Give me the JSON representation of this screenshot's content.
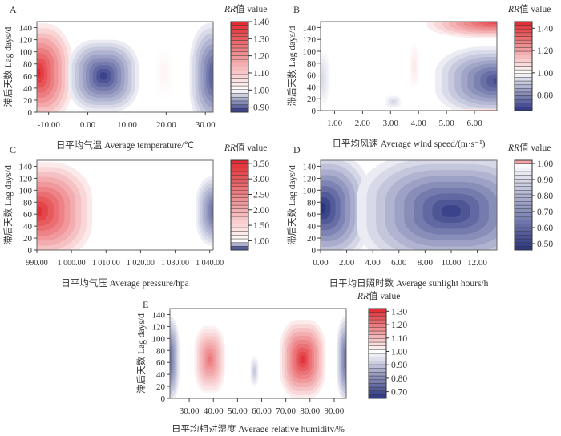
{
  "colors": {
    "high": "#e0282e",
    "low": "#2b3481",
    "neutral": "#ffffff"
  },
  "chart_data": [
    {
      "panel": "A",
      "type": "heatmap",
      "contour": true,
      "xlabel": "日平均气温 Average temperature/℃",
      "ylabel": "滞后天数 Lag days/d",
      "legend_title_italic": "RR",
      "legend_title": "值 value",
      "xlim": [
        -13,
        32
      ],
      "ylim": [
        0,
        150
      ],
      "xticks": [
        -10,
        0,
        10,
        20,
        30
      ],
      "xtick_labels": [
        "-10.00",
        "0.00",
        "10.00",
        "20.00",
        "30.00"
      ],
      "yticks": [
        0,
        20,
        40,
        60,
        80,
        100,
        120,
        140
      ],
      "legend_range": [
        0.87,
        1.4
      ],
      "legend_ticks": [
        0.9,
        1.0,
        1.1,
        1.2,
        1.3,
        1.4
      ],
      "legend_tick_labels": [
        "0.90",
        "1.00",
        "1.10",
        "1.20",
        "1.30",
        "1.40"
      ],
      "extremes": [
        {
          "x": -13,
          "lag": 65,
          "rx": 9,
          "ry": 82,
          "rr": 1.4
        },
        {
          "x": 4,
          "lag": 60,
          "rx": 9,
          "ry": 60,
          "rr": 0.88
        },
        {
          "x": 19.5,
          "lag": 65,
          "rx": 2.5,
          "ry": 42,
          "rr": 1.02
        },
        {
          "x": 33,
          "lag": 60,
          "rx": 7,
          "ry": 88,
          "rr": 0.88
        }
      ]
    },
    {
      "panel": "B",
      "type": "heatmap",
      "contour": true,
      "xlabel": "日平均风速 Average wind speed/(m·s⁻¹)",
      "ylabel": "滞后天数 Lag days/d",
      "legend_title_italic": "RR",
      "legend_title": "值 value",
      "xlim": [
        0.5,
        6.8
      ],
      "ylim": [
        0,
        150
      ],
      "xticks": [
        1,
        2,
        3,
        4,
        5,
        6
      ],
      "xtick_labels": [
        "1.00",
        "2.00",
        "3.00",
        "4.00",
        "5.00",
        "6.00"
      ],
      "yticks": [
        0,
        20,
        40,
        60,
        80,
        100,
        120,
        140
      ],
      "legend_range": [
        0.66,
        1.46
      ],
      "legend_ticks": [
        0.8,
        1.0,
        1.2,
        1.4
      ],
      "legend_tick_labels": [
        "0.80",
        "1.00",
        "1.20",
        "1.40"
      ],
      "extremes": [
        {
          "x": 6.9,
          "lag": 152,
          "rx": 2.6,
          "ry": 30,
          "rr": 1.42
        },
        {
          "x": 6.9,
          "lag": 50,
          "rx": 2.3,
          "ry": 58,
          "rr": 0.7
        },
        {
          "x": 0.5,
          "lag": 55,
          "rx": 0.35,
          "ry": 46,
          "rr": 0.93
        },
        {
          "x": 3.1,
          "lag": 15,
          "rx": 0.3,
          "ry": 11,
          "rr": 0.93
        },
        {
          "x": 3.85,
          "lag": 75,
          "rx": 0.18,
          "ry": 38,
          "rr": 1.05
        },
        {
          "x": 6.8,
          "lag": 0,
          "rx": 1.8,
          "ry": 3,
          "rr": 1.2
        }
      ]
    },
    {
      "panel": "C",
      "type": "heatmap",
      "contour": true,
      "xlabel": "日平均气压 Average pressure/hpa",
      "ylabel": "滞后天数 Lag days/d",
      "legend_title_italic": "RR",
      "legend_title": "值 value",
      "xlim": [
        990,
        1041
      ],
      "ylim": [
        0,
        150
      ],
      "xticks": [
        990,
        1000,
        1010,
        1020,
        1030,
        1040
      ],
      "xtick_labels": [
        "990.00",
        "1 000.00",
        "1 010.00",
        "1 020.00",
        "1 030.00",
        "1 040.00"
      ],
      "yticks": [
        0,
        20,
        40,
        60,
        80,
        100,
        120,
        140
      ],
      "legend_range": [
        0.7,
        3.6
      ],
      "legend_ticks": [
        1.0,
        1.5,
        2.0,
        2.5,
        3.0,
        3.5
      ],
      "legend_tick_labels": [
        "1.00",
        "1.50",
        "2.00",
        "2.50",
        "3.00",
        "3.50"
      ],
      "extremes": [
        {
          "x": 990,
          "lag": 65,
          "rx": 16,
          "ry": 82,
          "rr": 3.5
        },
        {
          "x": 1042,
          "lag": 65,
          "rx": 6,
          "ry": 58,
          "rr": 0.75
        }
      ]
    },
    {
      "panel": "D",
      "type": "heatmap",
      "contour": true,
      "xlabel": "日平均日照时数 Average sunlight hours/h",
      "ylabel": "滞后天数 Lag days/d",
      "legend_title_italic": "RR",
      "legend_title": "值 value",
      "xlim": [
        0,
        13.5
      ],
      "ylim": [
        0,
        150
      ],
      "xticks": [
        0,
        2,
        4,
        6,
        8,
        10,
        12
      ],
      "xtick_labels": [
        "0.00",
        "2.00",
        "4.00",
        "6.00",
        "8.00",
        "10.00",
        "12.00"
      ],
      "yticks": [
        0,
        20,
        40,
        60,
        80,
        100,
        120,
        140
      ],
      "legend_range": [
        0.46,
        1.02
      ],
      "legend_ticks": [
        0.5,
        0.6,
        0.7,
        0.8,
        0.9,
        1.0
      ],
      "legend_tick_labels": [
        "0.50",
        "0.60",
        "0.70",
        "0.80",
        "0.90",
        "1.00"
      ],
      "extremes": [
        {
          "x": 0,
          "lag": 70,
          "rx": 3.8,
          "ry": 92,
          "rr": 0.45
        },
        {
          "x": 10,
          "lag": 65,
          "rx": 7.2,
          "ry": 98,
          "rr": 0.5
        }
      ]
    },
    {
      "panel": "E",
      "type": "heatmap",
      "contour": true,
      "xlabel": "日平均相对湿度 Average relative humidity/%",
      "ylabel": "滞后天数 Lag days/d",
      "legend_title_italic": "RR",
      "legend_title": "值 value",
      "xlim": [
        22,
        95
      ],
      "ylim": [
        0,
        150
      ],
      "xticks": [
        30,
        40,
        50,
        60,
        70,
        80,
        90
      ],
      "xtick_labels": [
        "30.00",
        "40.00",
        "50.00",
        "60.00",
        "70.00",
        "80.00",
        "90.00"
      ],
      "yticks": [
        0,
        20,
        40,
        60,
        80,
        100,
        120,
        140
      ],
      "legend_range": [
        0.65,
        1.32
      ],
      "legend_ticks": [
        0.7,
        0.8,
        0.9,
        1.0,
        1.1,
        1.2,
        1.3
      ],
      "legend_tick_labels": [
        "0.70",
        "0.80",
        "0.90",
        "1.00",
        "1.10",
        "1.20",
        "1.30"
      ],
      "extremes": [
        {
          "x": 21,
          "lag": 65,
          "rx": 5,
          "ry": 72,
          "rr": 0.68
        },
        {
          "x": 96,
          "lag": 65,
          "rx": 5,
          "ry": 72,
          "rr": 0.68
        },
        {
          "x": 38.5,
          "lag": 65,
          "rx": 6.5,
          "ry": 56,
          "rr": 1.2
        },
        {
          "x": 77,
          "lag": 65,
          "rx": 9.5,
          "ry": 66,
          "rr": 1.3
        },
        {
          "x": 57,
          "lag": 45,
          "rx": 1.8,
          "ry": 25,
          "rr": 0.9
        }
      ]
    }
  ]
}
